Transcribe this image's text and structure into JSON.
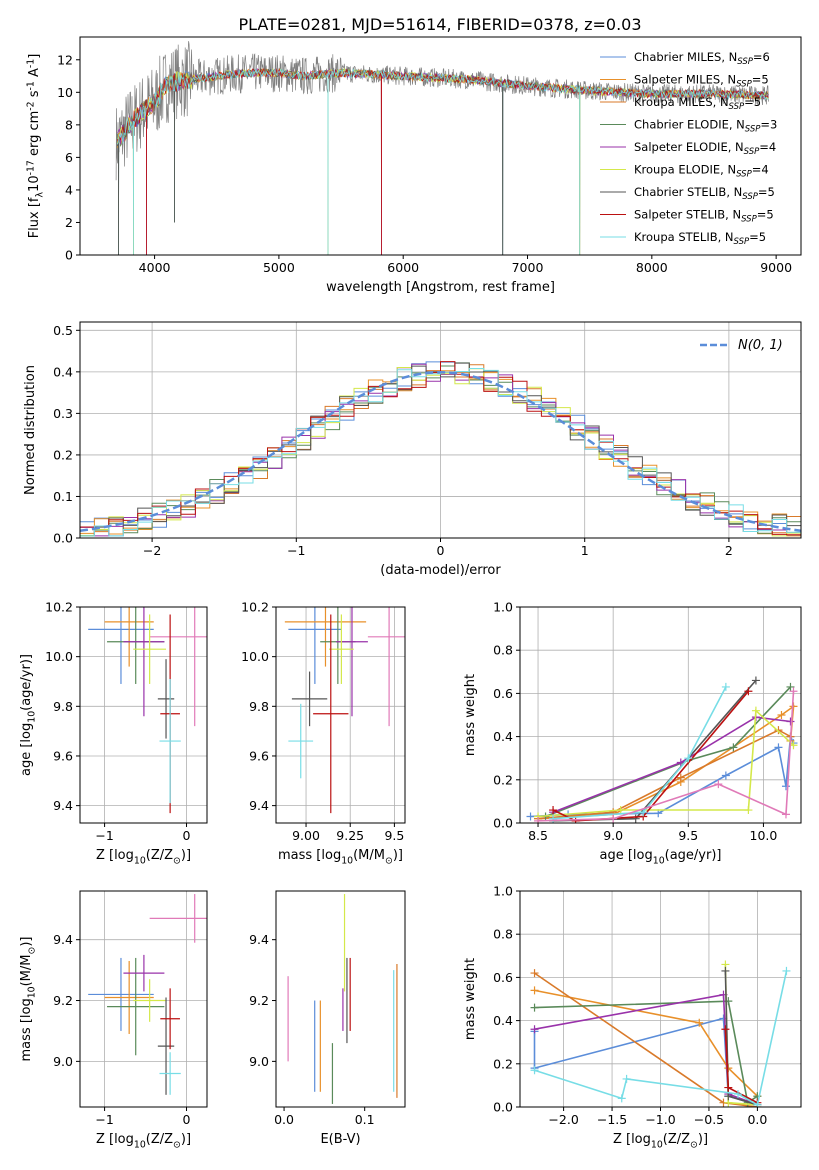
{
  "figure_title": "PLATE=0281, MJD=51614, FIBERID=0378, z=0.03",
  "models": [
    {
      "name": "Chabrier MILES, N$_{SSP}$=6",
      "label_main": "Chabrier MILES, N",
      "label_sub": "SSP",
      "label_end": "=6",
      "color": "#5b8dd9"
    },
    {
      "name": "Salpeter MILES, N$_{SSP}$=5",
      "label_main": "Salpeter MILES, N",
      "label_sub": "SSP",
      "label_end": "=5",
      "color": "#e8902a"
    },
    {
      "name": "Kroupa MILES, N$_{SSP}$=5",
      "label_main": "Kroupa MILES, N",
      "label_sub": "SSP",
      "label_end": "=5",
      "color": "#d97a2a"
    },
    {
      "name": "Chabrier ELODIE, N$_{SSP}$=3",
      "label_main": "Chabrier ELODIE, N",
      "label_sub": "SSP",
      "label_end": "=3",
      "color": "#5a8a5a"
    },
    {
      "name": "Salpeter ELODIE, N$_{SSP}$=4",
      "label_main": "Salpeter ELODIE, N",
      "label_sub": "SSP",
      "label_end": "=4",
      "color": "#9932aa"
    },
    {
      "name": "Kroupa ELODIE, N$_{SSP}$=4",
      "label_main": "Kroupa ELODIE, N",
      "label_sub": "SSP",
      "label_end": "=4",
      "color": "#d4e84a"
    },
    {
      "name": "Chabrier STELIB, N$_{SSP}$=5",
      "label_main": "Chabrier STELIB, N",
      "label_sub": "SSP",
      "label_end": "=5",
      "color": "#555555"
    },
    {
      "name": "Salpeter STELIB, N$_{SSP}$=5",
      "label_main": "Salpeter STELIB, N",
      "label_sub": "SSP",
      "label_end": "=5",
      "color": "#bb1111"
    },
    {
      "name": "Kroupa STELIB, N$_{SSP}$=5",
      "label_main": "Kroupa STELIB, N",
      "label_sub": "SSP",
      "label_end": "=5",
      "color": "#77dde6"
    }
  ],
  "chart_data": [
    {
      "id": "spectrum",
      "type": "line",
      "xlabel": "wavelength [Angstrom, rest frame]",
      "ylabel": "Flux [f$_\\lambda$10$^{-17}$ erg cm$^{-2}$ s$^{-1}$ A$^{-1}$]",
      "xlim": [
        3400,
        9200
      ],
      "ylim": [
        0,
        13.4
      ],
      "xticks": [
        4000,
        5000,
        6000,
        7000,
        8000,
        9000
      ],
      "yticks": [
        0,
        2,
        4,
        6,
        8,
        10,
        12
      ],
      "data_color": "#808080",
      "continuum": [
        [
          3700,
          7.0
        ],
        [
          3800,
          8.0
        ],
        [
          3900,
          8.8
        ],
        [
          4000,
          9.4
        ],
        [
          4100,
          10.5
        ],
        [
          4200,
          10.7
        ],
        [
          4400,
          10.9
        ],
        [
          4600,
          11.1
        ],
        [
          4800,
          11.2
        ],
        [
          5000,
          11.2
        ],
        [
          5200,
          11.0
        ],
        [
          5500,
          11.2
        ],
        [
          6000,
          11.0
        ],
        [
          6500,
          10.8
        ],
        [
          7000,
          10.4
        ],
        [
          7500,
          10.1
        ],
        [
          8000,
          9.9
        ],
        [
          8500,
          9.9
        ],
        [
          8940,
          9.8
        ]
      ],
      "dips": [
        [
          3710,
          0
        ],
        [
          3830,
          0
        ],
        [
          3935,
          0
        ],
        [
          4160,
          2
        ],
        [
          5395,
          0
        ],
        [
          5825,
          0
        ],
        [
          6800,
          0
        ],
        [
          7420,
          0
        ]
      ],
      "legend_position": "upper right",
      "grid": false
    },
    {
      "id": "residuals",
      "type": "histogram",
      "xlabel": "(data-model)/error",
      "ylabel": "Normed distribution",
      "xlim": [
        -2.5,
        2.5
      ],
      "ylim": [
        0,
        0.52
      ],
      "xticks": [
        -2,
        -1,
        0,
        1,
        2
      ],
      "yticks": [
        0.0,
        0.1,
        0.2,
        0.3,
        0.4,
        0.5
      ],
      "bin_width": 0.1,
      "reference_curve": {
        "label": "$\\mathcal{N}(0,1)$",
        "color": "#5b8dd9",
        "mean": 0,
        "sigma": 1
      },
      "grid": true
    },
    {
      "id": "age_vs_Z",
      "type": "errorbar",
      "xlabel": "Z [log$_{10}$(Z/Z$_\\odot$)]",
      "ylabel": "age  [log$_{10}$(age/yr)]",
      "xlim": [
        -1.3,
        0.25
      ],
      "ylim": [
        9.33,
        10.2
      ],
      "xticks": [
        -1,
        0
      ],
      "yticks": [
        9.4,
        9.6,
        9.8,
        10.0,
        10.2
      ],
      "points": [
        {
          "x": -0.8,
          "y": 10.11,
          "xerr": 0.4,
          "yerr": 0.22
        },
        {
          "x": -0.7,
          "y": 10.14,
          "xerr": 0.3,
          "yerr": 0.18
        },
        {
          "x": 0.1,
          "y": 10.08,
          "xerr": 0.55,
          "yerr": 0.36
        },
        {
          "x": -0.62,
          "y": 10.06,
          "xerr": 0.35,
          "yerr": 0.17
        },
        {
          "x": -0.52,
          "y": 10.06,
          "xerr": 0.25,
          "yerr": 0.3
        },
        {
          "x": -0.45,
          "y": 10.03,
          "xerr": 0.2,
          "yerr": 0.14
        },
        {
          "x": -0.25,
          "y": 9.83,
          "xerr": 0.1,
          "yerr": 0.16
        },
        {
          "x": -0.2,
          "y": 9.77,
          "xerr": 0.12,
          "yerr": 0.4
        },
        {
          "x": -0.2,
          "y": 9.66,
          "xerr": 0.13,
          "yerr": 0.25
        }
      ],
      "grid": true
    },
    {
      "id": "age_vs_mass",
      "type": "errorbar",
      "xlabel": "mass [log$_{10}$(M/M$_\\odot$)]",
      "ylabel": "",
      "xlim": [
        8.83,
        9.56
      ],
      "ylim": [
        9.33,
        10.2
      ],
      "xticks": [
        9.0,
        9.25,
        9.5
      ],
      "yticks": [
        9.4,
        9.6,
        9.8,
        10.0,
        10.2
      ],
      "points": [
        {
          "x": 9.05,
          "y": 10.11,
          "xerr": 0.15,
          "yerr": 0.22
        },
        {
          "x": 9.11,
          "y": 10.14,
          "xerr": 0.23,
          "yerr": 0.18
        },
        {
          "x": 9.47,
          "y": 10.08,
          "xerr": 0.12,
          "yerr": 0.36
        },
        {
          "x": 9.18,
          "y": 10.06,
          "xerr": 0.1,
          "yerr": 0.17
        },
        {
          "x": 9.26,
          "y": 10.06,
          "xerr": 0.09,
          "yerr": 0.3
        },
        {
          "x": 9.2,
          "y": 10.03,
          "xerr": 0.07,
          "yerr": 0.14
        },
        {
          "x": 9.02,
          "y": 9.83,
          "xerr": 0.1,
          "yerr": 0.11
        },
        {
          "x": 9.14,
          "y": 9.77,
          "xerr": 0.1,
          "yerr": 0.4
        },
        {
          "x": 8.97,
          "y": 9.66,
          "xerr": 0.07,
          "yerr": 0.15
        }
      ],
      "grid": true
    },
    {
      "id": "weight_vs_age",
      "type": "line",
      "xlabel": "age  [log$_{10}$(age/yr)]",
      "ylabel": "mass weight",
      "xlim": [
        8.38,
        10.25
      ],
      "ylim": [
        0,
        1.0
      ],
      "xticks": [
        8.5,
        9.0,
        9.5,
        10.0
      ],
      "yticks": [
        0.0,
        0.2,
        0.4,
        0.6,
        0.8,
        1.0
      ],
      "series": [
        [
          [
            8.45,
            0.03
          ],
          [
            8.7,
            0.04
          ],
          [
            9.3,
            0.045
          ],
          [
            9.75,
            0.22
          ],
          [
            10.1,
            0.35
          ],
          [
            10.15,
            0.17
          ],
          [
            10.18,
            0.4
          ],
          [
            10.2,
            0.37
          ]
        ],
        [
          [
            8.5,
            0.02
          ],
          [
            9.0,
            0.04
          ],
          [
            9.45,
            0.19
          ],
          [
            10.12,
            0.5
          ],
          [
            10.2,
            0.54
          ],
          [
            10.18,
            0.38
          ]
        ],
        [
          [
            8.5,
            0.02
          ],
          [
            9.0,
            0.05
          ],
          [
            9.45,
            0.21
          ],
          [
            10.1,
            0.43
          ],
          [
            10.18,
            0.4
          ]
        ],
        [
          [
            8.55,
            0.03
          ],
          [
            9.5,
            0.29
          ],
          [
            9.8,
            0.35
          ],
          [
            10.18,
            0.63
          ]
        ],
        [
          [
            8.6,
            0.05
          ],
          [
            9.45,
            0.28
          ],
          [
            9.95,
            0.49
          ],
          [
            10.18,
            0.47
          ]
        ],
        [
          [
            8.5,
            0.03
          ],
          [
            9.05,
            0.06
          ],
          [
            9.9,
            0.06
          ],
          [
            9.95,
            0.52
          ],
          [
            10.2,
            0.36
          ]
        ],
        [
          [
            8.6,
            0.01
          ],
          [
            9.15,
            0.02
          ],
          [
            9.95,
            0.66
          ]
        ],
        [
          [
            8.6,
            0.06
          ],
          [
            8.75,
            0.01
          ],
          [
            9.2,
            0.03
          ],
          [
            9.9,
            0.61
          ]
        ],
        [
          [
            8.6,
            0.02
          ],
          [
            9.2,
            0.05
          ],
          [
            9.5,
            0.3
          ],
          [
            9.75,
            0.63
          ]
        ],
        [
          [
            8.5,
            0.01
          ],
          [
            9.0,
            0.02
          ],
          [
            9.7,
            0.18
          ],
          [
            10.15,
            0.04
          ],
          [
            10.2,
            0.61
          ]
        ]
      ],
      "grid": true
    },
    {
      "id": "mass_vs_Z",
      "type": "errorbar",
      "xlabel": "Z [log$_{10}$(Z/Z$_\\odot$)]",
      "ylabel": "mass [log$_{10}$(M/M$_\\odot$)]",
      "xlim": [
        -1.3,
        0.25
      ],
      "ylim": [
        8.85,
        9.56
      ],
      "xticks": [
        -1,
        0
      ],
      "yticks": [
        9.0,
        9.2,
        9.4
      ],
      "points": [
        {
          "x": -0.8,
          "y": 9.22,
          "xerr": 0.4,
          "yerr": 0.12
        },
        {
          "x": -0.7,
          "y": 9.21,
          "xerr": 0.3,
          "yerr": 0.12
        },
        {
          "x": 0.1,
          "y": 9.47,
          "xerr": 0.55,
          "yerr": 0.08
        },
        {
          "x": -0.62,
          "y": 9.18,
          "xerr": 0.35,
          "yerr": 0.16
        },
        {
          "x": -0.52,
          "y": 9.29,
          "xerr": 0.25,
          "yerr": 0.06
        },
        {
          "x": -0.45,
          "y": 9.2,
          "xerr": 0.2,
          "yerr": 0.07
        },
        {
          "x": -0.25,
          "y": 9.05,
          "xerr": 0.1,
          "yerr": 0.16
        },
        {
          "x": -0.2,
          "y": 9.14,
          "xerr": 0.12,
          "yerr": 0.1
        },
        {
          "x": -0.2,
          "y": 8.96,
          "xerr": 0.13,
          "yerr": 0.07
        }
      ],
      "grid": true
    },
    {
      "id": "mass_vs_ebv",
      "type": "errorbar",
      "xlabel": "E(B-V)",
      "ylabel": "",
      "xlim": [
        -0.01,
        0.15
      ],
      "ylim": [
        8.85,
        9.56
      ],
      "xticks": [
        0.0,
        0.1
      ],
      "yticks": [
        9.0,
        9.2,
        9.4
      ],
      "points": [
        {
          "x": 0.038,
          "y": 9.05,
          "xerr": 0,
          "yerr": 0.15
        },
        {
          "x": 0.045,
          "y": 9.05,
          "xerr": 0,
          "yerr": 0.15
        },
        {
          "x": 0.005,
          "y": 9.14,
          "xerr": 0,
          "yerr": 0.14
        },
        {
          "x": 0.06,
          "y": 8.96,
          "xerr": 0,
          "yerr": 0.1
        },
        {
          "x": 0.073,
          "y": 9.17,
          "xerr": 0,
          "yerr": 0.07
        },
        {
          "x": 0.075,
          "y": 9.39,
          "xerr": 0,
          "yerr": 0.16
        },
        {
          "x": 0.078,
          "y": 9.2,
          "xerr": 0,
          "yerr": 0.14
        },
        {
          "x": 0.082,
          "y": 9.22,
          "xerr": 0,
          "yerr": 0.12
        },
        {
          "x": 0.136,
          "y": 9.1,
          "xerr": 0,
          "yerr": 0.2
        },
        {
          "x": 0.14,
          "y": 9.1,
          "xerr": 0,
          "yerr": 0.22
        }
      ],
      "grid": false
    },
    {
      "id": "weight_vs_Z",
      "type": "line",
      "xlabel": "Z [log$_{10}$(Z/Z$_\\odot$)]",
      "ylabel": "mass weight",
      "xlim": [
        -2.45,
        0.45
      ],
      "ylim": [
        0,
        1.0
      ],
      "xticks": [
        -2.0,
        -1.5,
        -1.0,
        -0.5,
        0.0
      ],
      "yticks": [
        0.0,
        0.2,
        0.4,
        0.6,
        0.8,
        1.0
      ],
      "series": [
        [
          [
            -2.3,
            0.35
          ],
          [
            -2.3,
            0.18
          ],
          [
            -0.35,
            0.41
          ],
          [
            -0.3,
            0.05
          ],
          [
            0.0,
            0.01
          ]
        ],
        [
          [
            -2.3,
            0.54
          ],
          [
            -0.6,
            0.39
          ],
          [
            -0.3,
            0.18
          ],
          [
            0.0,
            0.05
          ]
        ],
        [
          [
            -2.3,
            0.62
          ],
          [
            -0.35,
            0.02
          ],
          [
            0.0,
            0.0
          ]
        ],
        [
          [
            -2.3,
            0.46
          ],
          [
            -0.3,
            0.49
          ],
          [
            -0.1,
            0.02
          ],
          [
            0.0,
            0.05
          ]
        ],
        [
          [
            -2.3,
            0.36
          ],
          [
            -0.35,
            0.52
          ],
          [
            -0.3,
            0.06
          ],
          [
            0.0,
            0.01
          ]
        ],
        [
          [
            -0.33,
            0.66
          ],
          [
            -0.3,
            0.02
          ],
          [
            0.0,
            0.01
          ]
        ],
        [
          [
            -0.33,
            0.63
          ],
          [
            -0.3,
            0.05
          ],
          [
            0.0,
            0.01
          ]
        ],
        [
          [
            -0.33,
            0.36
          ],
          [
            -0.3,
            0.09
          ],
          [
            0.0,
            0.02
          ]
        ],
        [
          [
            -2.3,
            0.17
          ],
          [
            -1.4,
            0.04
          ],
          [
            -1.35,
            0.13
          ],
          [
            -0.2,
            0.06
          ],
          [
            0.0,
            0.01
          ],
          [
            0.3,
            0.63
          ]
        ]
      ],
      "grid": true
    }
  ]
}
